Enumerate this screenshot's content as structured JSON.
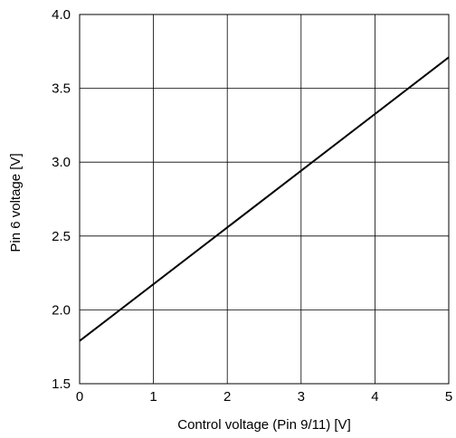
{
  "chart_data": {
    "type": "line",
    "xlabel": "Control voltage (Pin 9/11) [V]",
    "ylabel": "Pin 6 voltage [V]",
    "xlim": [
      0,
      5
    ],
    "ylim": [
      1.5,
      4.0
    ],
    "x_ticks": [
      0,
      1,
      2,
      3,
      4,
      5
    ],
    "x_tick_labels": [
      "0",
      "1",
      "2",
      "3",
      "4",
      "5"
    ],
    "y_ticks": [
      1.5,
      2.0,
      2.5,
      3.0,
      3.5,
      4.0
    ],
    "y_tick_labels": [
      "1.5",
      "2.0",
      "2.5",
      "3.0",
      "3.5",
      "4.0"
    ],
    "grid": true,
    "series": [
      {
        "x": [
          0,
          5
        ],
        "y": [
          1.79,
          3.71
        ]
      }
    ],
    "colors": {
      "line": "#000000",
      "grid": "#000000",
      "frame": "#000000",
      "background": "#ffffff"
    }
  }
}
